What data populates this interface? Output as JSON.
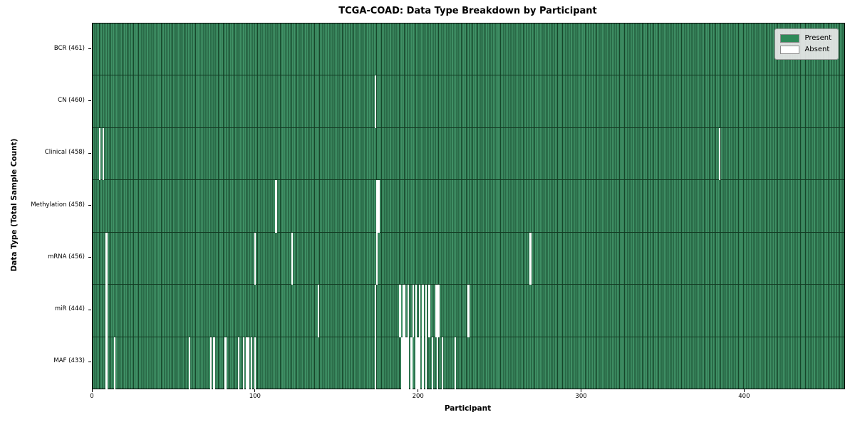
{
  "chart_data": {
    "type": "heatmap",
    "title": "TCGA-COAD: Data Type Breakdown by Participant",
    "xlabel": "Participant",
    "ylabel": "Data Type (Total Sample Count)",
    "n_participants": 461,
    "x_ticks": [
      0,
      100,
      200,
      300,
      400
    ],
    "grid": false,
    "legend": {
      "position": "upper right",
      "entries": [
        {
          "label": "Present",
          "color": "#2f8a59"
        },
        {
          "label": "Absent",
          "color": "#ffffff"
        }
      ]
    },
    "colors": {
      "present_face": "#3f9065",
      "present_edge": "#16462a",
      "absent": "#ffffff",
      "legend_bg": "#e8e8e8"
    },
    "rows": [
      {
        "label": "BCR (461)",
        "data_type": "BCR",
        "total": 461,
        "absent_participants": []
      },
      {
        "label": "CN (460)",
        "data_type": "CN",
        "total": 460,
        "absent_participants": [
          173
        ]
      },
      {
        "label": "Clinical (458)",
        "data_type": "Clinical",
        "total": 458,
        "absent_participants": [
          4,
          6,
          384
        ]
      },
      {
        "label": "Methylation (458)",
        "data_type": "Methylation",
        "total": 458,
        "absent_participants": [
          112,
          174,
          175
        ]
      },
      {
        "label": "mRNA (456)",
        "data_type": "mRNA",
        "total": 456,
        "absent_participants": [
          8,
          99,
          122,
          174,
          268
        ]
      },
      {
        "label": "miR (444)",
        "data_type": "miR",
        "total": 444,
        "absent_participants": [
          8,
          138,
          173,
          188,
          190,
          191,
          193,
          196,
          198,
          200,
          202,
          204,
          206,
          210,
          211,
          212,
          230
        ]
      },
      {
        "label": "MAF (433)",
        "data_type": "MAF",
        "total": 433,
        "absent_participants": [
          8,
          13,
          59,
          72,
          74,
          81,
          89,
          92,
          94,
          95,
          97,
          99,
          173,
          189,
          190,
          191,
          192,
          193,
          195,
          198,
          199,
          200,
          202,
          204,
          208,
          211,
          214,
          222
        ]
      }
    ]
  }
}
